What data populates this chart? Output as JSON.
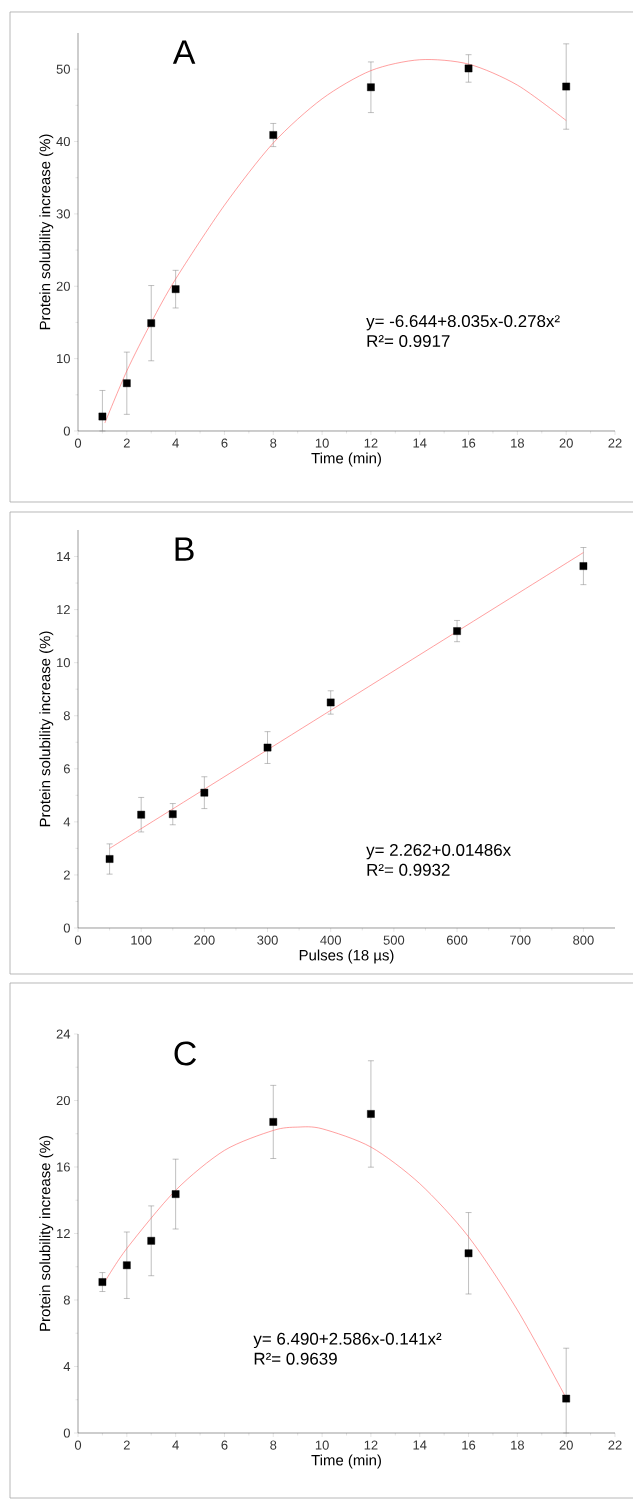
{
  "chart_data": [
    {
      "type": "scatter",
      "title": "A",
      "xlabel": "Time (min)",
      "ylabel": "Protein solubility increase (%)",
      "xlim": [
        0,
        22
      ],
      "xticks": [
        0,
        2,
        4,
        6,
        8,
        10,
        12,
        14,
        16,
        18,
        20,
        22
      ],
      "ylim": [
        0,
        55
      ],
      "yticks": [
        0,
        10,
        20,
        30,
        40,
        50
      ],
      "annotations": [
        "y= -6.644+8.035x-0.278x²",
        "R²= 0.9917"
      ],
      "series": [
        {
          "color": "#000000",
          "marker": "square",
          "x": [
            1,
            2,
            3,
            4,
            8,
            12,
            16,
            20
          ],
          "values": [
            2.0,
            6.6,
            14.9,
            19.6,
            40.9,
            47.5,
            50.1,
            47.6
          ],
          "errors": [
            [
              0,
              5.6
            ],
            4.3,
            5.2,
            2.6,
            1.6,
            3.5,
            1.9,
            5.9
          ]
        },
        {
          "type": "line",
          "color": "#ff6060",
          "x": [
            1.1,
            2,
            3,
            4,
            6,
            8,
            10,
            12,
            14,
            16,
            18,
            20
          ],
          "values": [
            1.1,
            8.3,
            15.0,
            21.0,
            31.2,
            39.8,
            45.9,
            49.8,
            51.3,
            50.7,
            47.8,
            42.9
          ]
        }
      ]
    },
    {
      "type": "scatter",
      "title": "B",
      "xlabel": "Pulses (18 µs)",
      "ylabel": "Protein solubility increase (%)",
      "xlim": [
        0,
        850
      ],
      "xticks": [
        0,
        100,
        200,
        300,
        400,
        500,
        600,
        700,
        800
      ],
      "ylim": [
        0,
        15
      ],
      "yticks": [
        0,
        2,
        4,
        6,
        8,
        10,
        12,
        14
      ],
      "annotations": [
        "y= 2.262+0.01486x",
        "R²= 0.9932"
      ],
      "series": [
        {
          "color": "#000000",
          "marker": "square",
          "x": [
            50,
            100,
            150,
            200,
            300,
            400,
            600,
            800
          ],
          "values": [
            2.6,
            4.27,
            4.29,
            5.1,
            6.8,
            8.5,
            11.19,
            13.64
          ],
          "errors": [
            0.57,
            0.65,
            0.4,
            0.6,
            0.6,
            0.44,
            0.4,
            0.7
          ]
        },
        {
          "type": "line",
          "color": "#ff6060",
          "x": [
            50,
            800
          ],
          "values": [
            3.0,
            14.15
          ]
        }
      ]
    },
    {
      "type": "scatter",
      "title": "C",
      "xlabel": "Time (min)",
      "ylabel": "Protein solubility increase (%)",
      "xlim": [
        0,
        22
      ],
      "xticks": [
        0,
        2,
        4,
        6,
        8,
        10,
        12,
        14,
        16,
        18,
        20,
        22
      ],
      "ylim": [
        0,
        24
      ],
      "yticks": [
        0,
        4,
        8,
        12,
        16,
        20,
        24
      ],
      "annotations": [
        "y= 6.490+2.586x-0.141x²",
        "R²= 0.9639"
      ],
      "series": [
        {
          "color": "#000000",
          "marker": "square",
          "x": [
            1,
            2,
            3,
            4,
            8,
            12,
            16,
            20
          ],
          "values": [
            9.08,
            10.09,
            11.56,
            14.37,
            18.71,
            19.19,
            10.81,
            2.07
          ],
          "errors": [
            0.57,
            2.0,
            2.1,
            2.1,
            2.2,
            3.2,
            2.45,
            [
              0,
              5.1
            ]
          ]
        },
        {
          "type": "line",
          "color": "#ff6060",
          "x": [
            1.1,
            2,
            4,
            6,
            8,
            9,
            10,
            12,
            14,
            16,
            18,
            20
          ],
          "values": [
            9.1,
            11.1,
            14.6,
            17.0,
            18.2,
            18.4,
            18.3,
            17.2,
            15.0,
            11.8,
            7.4,
            2.1
          ]
        }
      ]
    }
  ]
}
